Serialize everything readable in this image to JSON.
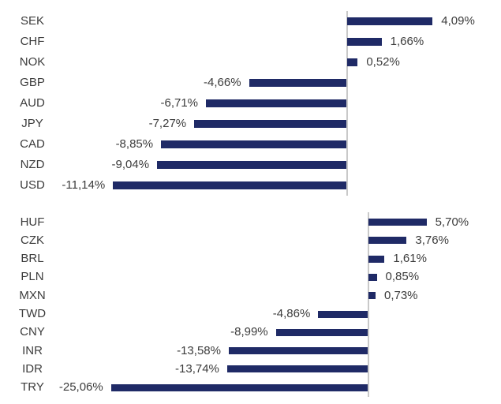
{
  "colors": {
    "bar": "#1F2A66",
    "axis": "#C9C9C9",
    "text": "#3C3C3C",
    "background": "#FFFFFF"
  },
  "chart_data": [
    {
      "type": "bar",
      "orientation": "horizontal",
      "title": "",
      "unit": "%",
      "decimal_separator": ",",
      "categories": [
        "SEK",
        "CHF",
        "NOK",
        "GBP",
        "AUD",
        "JPY",
        "CAD",
        "NZD",
        "USD"
      ],
      "values": [
        4.09,
        1.66,
        0.52,
        -4.66,
        -6.71,
        -7.27,
        -8.85,
        -9.04,
        -11.14
      ],
      "labels": [
        "4,09%",
        "1,66%",
        "0,52%",
        "-4,66%",
        "-6,71%",
        "-7,27%",
        "-8,85%",
        "-9,04%",
        "-11,14%"
      ],
      "xlim": [
        -16.5,
        7.3
      ],
      "grid": false,
      "legend": "none",
      "zero_axis_line": true,
      "value_label_position": "outside-end"
    },
    {
      "type": "bar",
      "orientation": "horizontal",
      "title": "",
      "unit": "%",
      "decimal_separator": ",",
      "categories": [
        "HUF",
        "CZK",
        "BRL",
        "PLN",
        "MXN",
        "TWD",
        "CNY",
        "INR",
        "IDR",
        "TRY"
      ],
      "values": [
        5.7,
        3.76,
        1.61,
        0.85,
        0.73,
        -4.86,
        -8.99,
        -13.58,
        -13.74,
        -25.06
      ],
      "labels": [
        "5,70%",
        "3,76%",
        "1,61%",
        "0,85%",
        "0,73%",
        "-4,86%",
        "-8,99%",
        "-13,58%",
        "-13,74%",
        "-25,06%"
      ],
      "xlim": [
        -35.9,
        13.0
      ],
      "grid": false,
      "legend": "none",
      "zero_axis_line": true,
      "value_label_position": "outside-end"
    }
  ]
}
